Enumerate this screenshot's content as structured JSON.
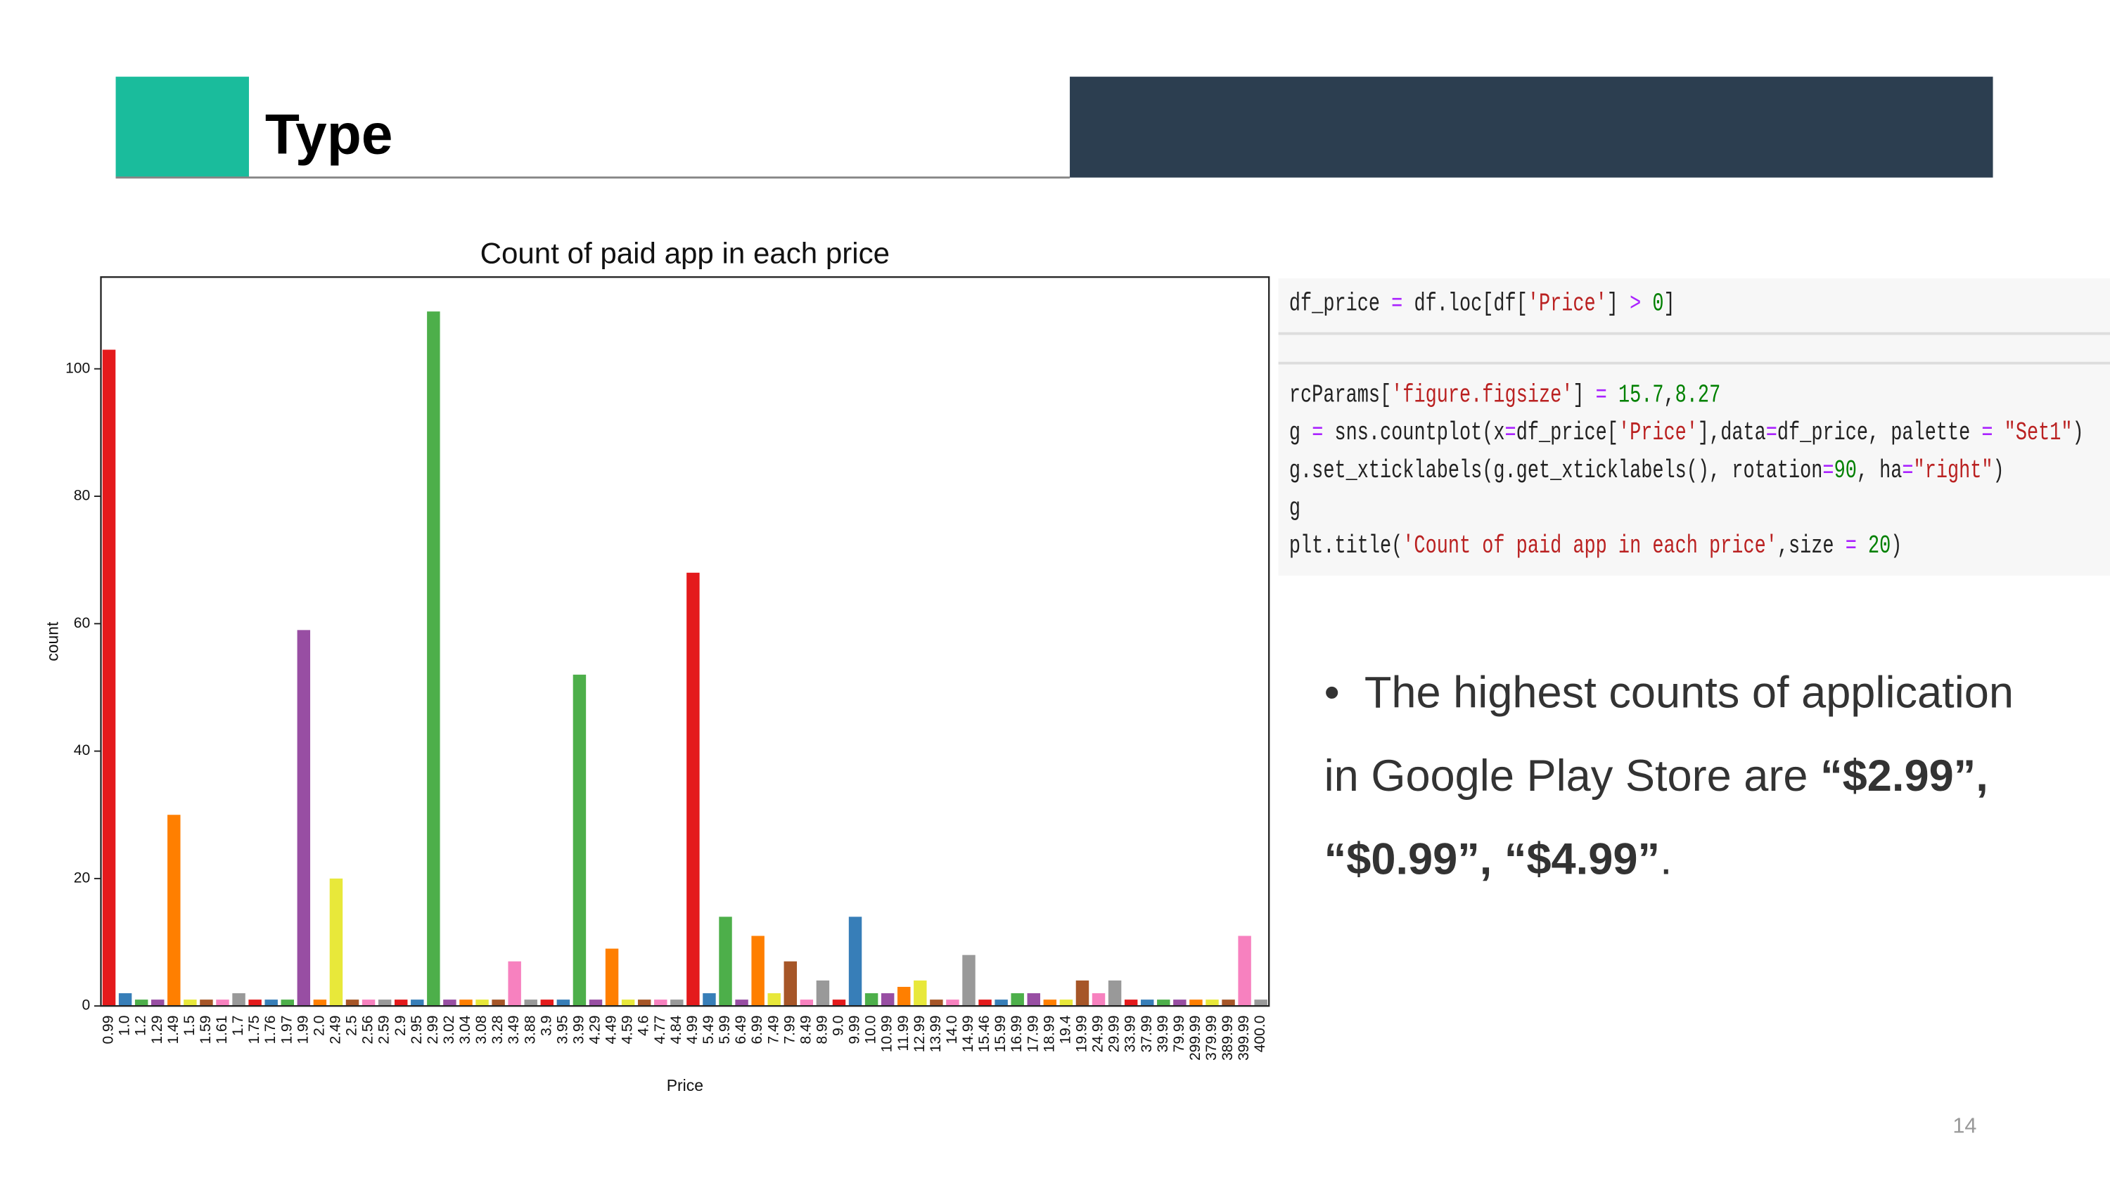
{
  "header": {
    "title": "Type"
  },
  "chart_data": {
    "type": "bar",
    "title": "Count of paid app in each price",
    "x_label": "Price",
    "y_label": "count",
    "categories": [
      "0.99",
      "1.0",
      "1.2",
      "1.29",
      "1.49",
      "1.5",
      "1.59",
      "1.61",
      "1.7",
      "1.75",
      "1.76",
      "1.97",
      "1.99",
      "2.0",
      "2.49",
      "2.5",
      "2.56",
      "2.59",
      "2.9",
      "2.95",
      "2.99",
      "3.02",
      "3.04",
      "3.08",
      "3.28",
      "3.49",
      "3.88",
      "3.9",
      "3.95",
      "3.99",
      "4.29",
      "4.49",
      "4.59",
      "4.6",
      "4.77",
      "4.84",
      "4.99",
      "5.49",
      "5.99",
      "6.49",
      "6.99",
      "7.49",
      "7.99",
      "8.49",
      "8.99",
      "9.0",
      "9.99",
      "10.0",
      "10.99",
      "11.99",
      "12.99",
      "13.99",
      "14.0",
      "14.99",
      "15.46",
      "15.99",
      "16.99",
      "17.99",
      "18.99",
      "19.4",
      "19.99",
      "24.99",
      "29.99",
      "33.99",
      "37.99",
      "39.99",
      "79.99",
      "299.99",
      "379.99",
      "389.99",
      "399.99",
      "400.0"
    ],
    "values": [
      103,
      2,
      1,
      1,
      30,
      1,
      1,
      1,
      2,
      1,
      1,
      1,
      59,
      1,
      20,
      1,
      1,
      1,
      1,
      1,
      109,
      1,
      1,
      1,
      1,
      7,
      1,
      1,
      1,
      52,
      1,
      9,
      1,
      1,
      1,
      1,
      68,
      2,
      14,
      1,
      11,
      2,
      7,
      1,
      4,
      1,
      14,
      2,
      2,
      3,
      4,
      1,
      1,
      8,
      1,
      1,
      2,
      2,
      1,
      1,
      4,
      2,
      4,
      1,
      1,
      1,
      1,
      1,
      1,
      1,
      11,
      1
    ],
    "palette": [
      "#e41a1c",
      "#377eb8",
      "#4daf4a",
      "#984ea3",
      "#ff7f00",
      "#e8e83a",
      "#a65628",
      "#f781bf",
      "#999999"
    ],
    "ylim": [
      0,
      114.4
    ],
    "yticks": [
      0,
      20,
      40,
      60,
      80,
      100
    ]
  },
  "code_cells": [
    {
      "lines": [
        "df_price = df.loc[df['Price'] > 0]"
      ]
    },
    {
      "lines": [
        "rcParams['figure.figsize'] = 15.7,8.27",
        "g = sns.countplot(x=df_price['Price'],data=df_price, palette = \"Set1\")",
        "g.set_xticklabels(g.get_xticklabels(), rotation=90, ha=\"right\")",
        "g",
        "plt.title('Count of paid app in each price',size = 20)"
      ]
    }
  ],
  "bullet": {
    "parts": [
      "The highest counts of application in Google Play Store are ",
      "“$2.99”, “$0.99”, “$4.99”",
      "."
    ]
  },
  "page_number": "14"
}
